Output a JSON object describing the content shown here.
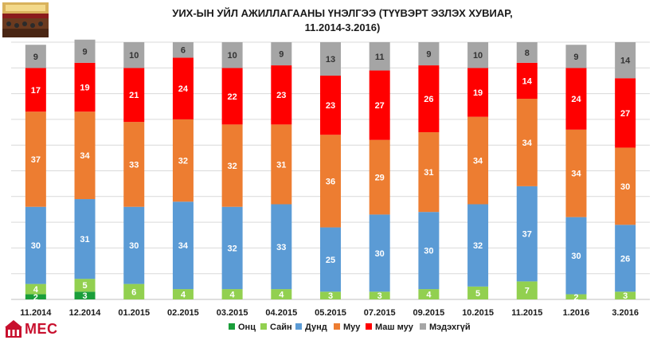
{
  "title_line1": "УИХ-ЫН УЙЛ АЖИЛЛАГААНЫ ҮНЭЛГЭЭ (ТҮҮВЭРТ ЭЗЛЭХ ХУВИАР,",
  "title_line2": "11.2014-3.2016)",
  "logo_text": "MEC",
  "colors": {
    "Онц": "#1a9e3a",
    "Сайн": "#92d050",
    "Дунд": "#5b9bd5",
    "Муу": "#ed7d31",
    "Маш муу": "#ff0000",
    "Мэдэхгүй": "#a5a5a5"
  },
  "chart_data": {
    "type": "bar",
    "stacked": true,
    "title": "УИХ-ЫН УЙЛ АЖИЛЛАГААНЫ ҮНЭЛГЭЭ (ТҮҮВЭРТ ЭЗЛЭХ ХУВИАР, 11.2014-3.2016)",
    "categories": [
      "11.2014",
      "12.2014",
      "01.2015",
      "02.2015",
      "03.2015",
      "04.2015",
      "05.2015",
      "07.2015",
      "09.2015",
      "10.2015",
      "11.2015",
      "1.2016",
      "3.2016"
    ],
    "series": [
      {
        "name": "Онц",
        "values": [
          2,
          3,
          0,
          0,
          0,
          0,
          0,
          0,
          0,
          0,
          0,
          0,
          0
        ]
      },
      {
        "name": "Сайн",
        "values": [
          4,
          5,
          6,
          4,
          4,
          4,
          3,
          3,
          4,
          5,
          7,
          2,
          3
        ]
      },
      {
        "name": "Дунд",
        "values": [
          30,
          31,
          30,
          34,
          32,
          33,
          25,
          30,
          30,
          32,
          37,
          30,
          26
        ]
      },
      {
        "name": "Муу",
        "values": [
          37,
          34,
          33,
          32,
          32,
          31,
          36,
          29,
          31,
          34,
          34,
          34,
          30
        ]
      },
      {
        "name": "Маш муу",
        "values": [
          17,
          19,
          21,
          24,
          22,
          23,
          23,
          27,
          26,
          19,
          14,
          24,
          27
        ]
      },
      {
        "name": "Мэдэхгүй",
        "values": [
          9,
          9,
          10,
          6,
          10,
          9,
          13,
          11,
          9,
          10,
          8,
          9,
          14
        ]
      }
    ],
    "ylim": [
      0,
      100
    ],
    "grid": true,
    "legend": "bottom"
  }
}
